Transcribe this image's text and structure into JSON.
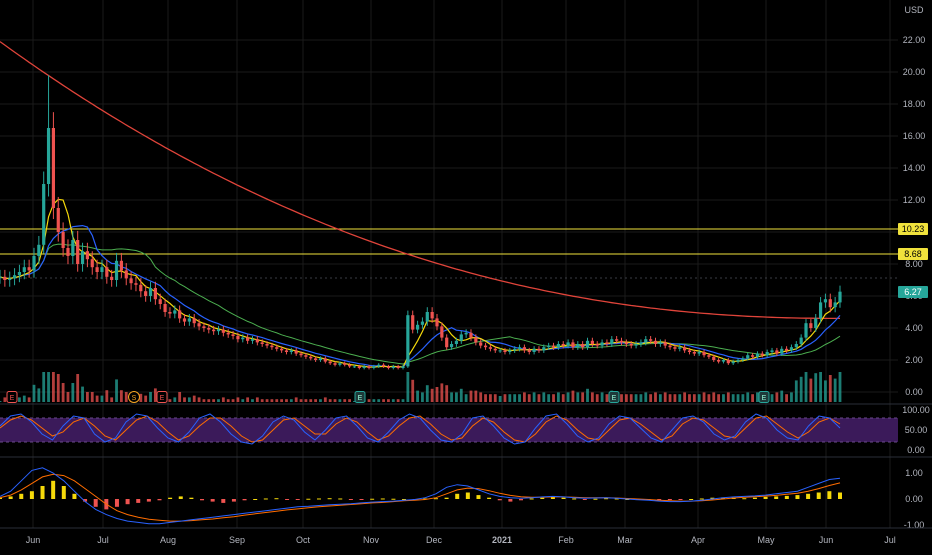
{
  "header": {
    "currency": "USD"
  },
  "colors": {
    "background": "#000000",
    "grid": "#1a1a1a",
    "axis_text": "#b2b5be",
    "up": "#26a69a",
    "down": "#ef5350",
    "ma200": "#e0443a",
    "ma50": "#4caf50",
    "ma20": "#2962ff",
    "ma9": "#f5d90a",
    "hline": "#f0e23c",
    "stoch_band": "#3b1a5a",
    "stoch_k": "#2962ff",
    "stoch_d": "#ff6d00",
    "macd_line": "#2962ff",
    "signal_line": "#ff6d00",
    "hist_pos": "#f5d90a",
    "hist_neg": "#ef5350"
  },
  "price_axis": {
    "ticks": [
      "22.00",
      "20.00",
      "18.00",
      "16.00",
      "14.00",
      "12.00",
      "10.00",
      "8.00",
      "6.00",
      "4.00",
      "2.00",
      "0.00"
    ]
  },
  "price_labels": [
    {
      "name": "resistance-high",
      "text": "10.23",
      "value": 10.23
    },
    {
      "name": "resistance-low",
      "text": "8.68",
      "value": 8.68
    },
    {
      "name": "last-price",
      "text": "6.27",
      "value": 6.27
    }
  ],
  "stoch_axis": {
    "ticks": [
      "100.00",
      "50.00",
      "0.00"
    ]
  },
  "macd_axis": {
    "ticks": [
      "1.00",
      "0.00",
      "-1.00"
    ]
  },
  "time_axis": {
    "labels": [
      "Jun",
      "Jul",
      "Aug",
      "Sep",
      "Oct",
      "Nov",
      "Dec",
      "2021",
      "Feb",
      "Mar",
      "Apr",
      "May",
      "Jun",
      "Jul"
    ]
  },
  "events": [
    {
      "name": "earnings-flag",
      "label": "E",
      "type": "earnings",
      "date": "May"
    },
    {
      "name": "split-flag",
      "label": "S",
      "type": "split",
      "date": "Jul"
    },
    {
      "name": "earnings-flag",
      "label": "E",
      "type": "earnings",
      "date": "Aug"
    },
    {
      "name": "earnings-flag",
      "label": "E",
      "type": "earnings-reported",
      "date": "Nov"
    },
    {
      "name": "earnings-flag",
      "label": "E",
      "type": "earnings-reported",
      "date": "Mar"
    },
    {
      "name": "earnings-flag",
      "label": "E",
      "type": "earnings-reported",
      "date": "May"
    }
  ],
  "chart_data": {
    "type": "candlestick",
    "price_ylim": [
      -0.5,
      24
    ],
    "horizontal_lines": [
      10.23,
      8.68
    ],
    "series_close": [
      7.2,
      7.0,
      7.1,
      7.3,
      7.5,
      7.8,
      7.6,
      8.5,
      9.2,
      13.0,
      16.5,
      11.5,
      10.0,
      9.0,
      8.5,
      9.5,
      8.0,
      8.8,
      8.3,
      7.8,
      7.5,
      7.8,
      7.2,
      7.0,
      8.2,
      7.6,
      7.1,
      6.8,
      6.7,
      6.3,
      6.0,
      6.5,
      5.8,
      5.5,
      5.0,
      4.9,
      5.1,
      4.6,
      4.4,
      4.6,
      4.3,
      4.1,
      4.0,
      3.9,
      3.8,
      3.9,
      3.7,
      3.6,
      3.5,
      3.3,
      3.4,
      3.2,
      3.3,
      3.1,
      3.0,
      2.9,
      2.8,
      2.7,
      2.6,
      2.5,
      2.6,
      2.4,
      2.3,
      2.2,
      2.1,
      2.0,
      2.1,
      1.9,
      1.8,
      1.7,
      1.8,
      1.7,
      1.6,
      1.6,
      1.5,
      1.6,
      1.5,
      1.6,
      1.7,
      1.6,
      1.5,
      1.6,
      1.5,
      1.6,
      4.8,
      3.9,
      4.2,
      4.4,
      5.0,
      4.6,
      4.1,
      3.4,
      2.8,
      3.0,
      3.2,
      3.6,
      3.7,
      3.4,
      3.1,
      2.9,
      2.8,
      2.7,
      2.6,
      2.6,
      2.5,
      2.6,
      2.7,
      2.8,
      2.6,
      2.5,
      2.7,
      2.6,
      2.8,
      2.9,
      2.8,
      3.0,
      2.9,
      3.1,
      2.8,
      3.0,
      2.8,
      3.2,
      3.0,
      2.9,
      3.1,
      3.0,
      3.3,
      3.2,
      3.1,
      3.0,
      2.9,
      3.0,
      3.1,
      3.3,
      3.2,
      3.0,
      3.1,
      2.9,
      2.8,
      2.7,
      2.8,
      2.6,
      2.5,
      2.4,
      2.5,
      2.3,
      2.2,
      2.0,
      1.9,
      2.0,
      1.8,
      1.9,
      2.0,
      2.1,
      2.3,
      2.2,
      2.4,
      2.3,
      2.5,
      2.6,
      2.4,
      2.7,
      2.6,
      2.8,
      3.0,
      3.4,
      4.3,
      4.0,
      4.6,
      5.6,
      5.8,
      5.3,
      5.6,
      6.27
    ],
    "stoch_ylim": [
      0,
      100
    ],
    "stoch_k": [
      60,
      85,
      90,
      70,
      40,
      25,
      60,
      85,
      80,
      40,
      20,
      30,
      70,
      90,
      85,
      55,
      30,
      20,
      45,
      80,
      90,
      70,
      40,
      20,
      15,
      35,
      70,
      85,
      75,
      45,
      25,
      50,
      80,
      85,
      60,
      30,
      20,
      45,
      75,
      90,
      80,
      50,
      25,
      20,
      40,
      80,
      85,
      60,
      30,
      15,
      20,
      55,
      85,
      90,
      65,
      35,
      20,
      30,
      65,
      85,
      80,
      55,
      30,
      20,
      50,
      80,
      85,
      70,
      40,
      25,
      35,
      70,
      90,
      80,
      50,
      30,
      25,
      60,
      85,
      80,
      55
    ],
    "stoch_d": [
      55,
      75,
      85,
      75,
      55,
      35,
      45,
      70,
      80,
      60,
      35,
      25,
      50,
      75,
      85,
      70,
      45,
      25,
      35,
      60,
      80,
      80,
      60,
      35,
      20,
      25,
      50,
      75,
      80,
      60,
      40,
      40,
      65,
      80,
      70,
      45,
      25,
      35,
      60,
      80,
      85,
      65,
      40,
      25,
      30,
      60,
      80,
      70,
      45,
      25,
      20,
      40,
      70,
      85,
      75,
      50,
      30,
      25,
      50,
      75,
      80,
      65,
      45,
      25,
      35,
      65,
      80,
      75,
      55,
      35,
      30,
      55,
      80,
      85,
      65,
      45,
      30,
      45,
      70,
      80,
      65
    ],
    "macd_ylim": [
      -1.5,
      1.6
    ],
    "macd_hist": [
      0.05,
      0.1,
      0.2,
      0.3,
      0.5,
      0.7,
      0.5,
      0.2,
      -0.1,
      -0.3,
      -0.4,
      -0.3,
      -0.2,
      -0.15,
      -0.1,
      -0.05,
      0.05,
      0.1,
      0.05,
      -0.05,
      -0.1,
      -0.15,
      -0.1,
      -0.05,
      0.0,
      0.02,
      0.03,
      -0.02,
      -0.03,
      0.01,
      0.02,
      0.03,
      0.02,
      -0.01,
      -0.02,
      0.01,
      0.02,
      0.01,
      0.0,
      -0.01,
      0.02,
      0.03,
      0.05,
      0.2,
      0.25,
      0.15,
      0.05,
      -0.05,
      -0.1,
      -0.05,
      0.02,
      0.05,
      0.08,
      0.05,
      0.02,
      -0.02,
      0.01,
      0.03,
      0.02,
      0.0,
      -0.02,
      -0.03,
      -0.05,
      -0.04,
      -0.02,
      0.0,
      0.02,
      0.05,
      0.06,
      0.05,
      0.03,
      0.05,
      0.08,
      0.1,
      0.12,
      0.15,
      0.2,
      0.25,
      0.3,
      0.25
    ],
    "macd_line": [
      0.1,
      0.3,
      0.7,
      1.1,
      1.2,
      1.0,
      0.7,
      0.3,
      -0.1,
      -0.4,
      -0.6,
      -0.75,
      -0.85,
      -0.9,
      -0.95,
      -0.95,
      -0.9,
      -0.85,
      -0.8,
      -0.75,
      -0.7,
      -0.65,
      -0.6,
      -0.55,
      -0.5,
      -0.45,
      -0.4,
      -0.35,
      -0.3,
      -0.28,
      -0.25,
      -0.22,
      -0.2,
      -0.18,
      -0.15,
      -0.12,
      -0.1,
      -0.08,
      -0.05,
      -0.02,
      0.05,
      0.2,
      0.45,
      0.55,
      0.5,
      0.35,
      0.2,
      0.1,
      0.05,
      0.03,
      0.05,
      0.08,
      0.1,
      0.08,
      0.05,
      0.03,
      0.04,
      0.05,
      0.03,
      0.0,
      -0.03,
      -0.05,
      -0.08,
      -0.1,
      -0.1,
      -0.08,
      -0.05,
      0.0,
      0.05,
      0.08,
      0.1,
      0.12,
      0.15,
      0.2,
      0.25,
      0.3,
      0.45,
      0.6,
      0.75,
      0.8
    ],
    "signal_line": [
      0.05,
      0.15,
      0.35,
      0.6,
      0.85,
      0.95,
      0.9,
      0.7,
      0.4,
      0.1,
      -0.2,
      -0.45,
      -0.6,
      -0.7,
      -0.78,
      -0.82,
      -0.85,
      -0.85,
      -0.83,
      -0.8,
      -0.77,
      -0.72,
      -0.68,
      -0.62,
      -0.57,
      -0.52,
      -0.47,
      -0.42,
      -0.38,
      -0.34,
      -0.3,
      -0.27,
      -0.24,
      -0.21,
      -0.18,
      -0.15,
      -0.13,
      -0.1,
      -0.07,
      -0.05,
      -0.02,
      0.05,
      0.2,
      0.35,
      0.42,
      0.4,
      0.32,
      0.22,
      0.14,
      0.09,
      0.07,
      0.07,
      0.08,
      0.08,
      0.07,
      0.05,
      0.05,
      0.05,
      0.04,
      0.02,
      0.0,
      -0.02,
      -0.05,
      -0.07,
      -0.08,
      -0.08,
      -0.07,
      -0.04,
      0.0,
      0.04,
      0.07,
      0.09,
      0.11,
      0.14,
      0.18,
      0.22,
      0.3,
      0.4,
      0.52,
      0.62
    ]
  }
}
